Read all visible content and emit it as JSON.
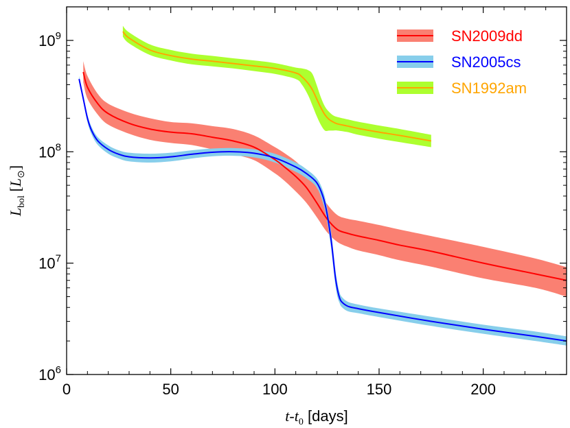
{
  "chart_data": {
    "type": "line",
    "xlabel": {
      "t": "t",
      "dash": "-",
      "t0": "t",
      "sub": "0",
      "units": " [days]"
    },
    "ylabel": {
      "L": "L",
      "sub": "bol",
      "unit_open": " [",
      "unit_L": "L",
      "unit_close": "]"
    },
    "xlim": [
      0,
      240
    ],
    "ylim": [
      1000000,
      2000000000
    ],
    "yscale": "log",
    "xticks": [
      0,
      50,
      100,
      150,
      200
    ],
    "yticks": [
      {
        "value": 1000000,
        "base": "10",
        "exp": "6"
      },
      {
        "value": 10000000,
        "base": "10",
        "exp": "7"
      },
      {
        "value": 100000000,
        "base": "10",
        "exp": "8"
      },
      {
        "value": 1000000000,
        "base": "10",
        "exp": "9"
      }
    ],
    "grid": false,
    "legend_position": "top-right",
    "series": [
      {
        "name": "SN2009dd",
        "line_color": "#ff0000",
        "band_color": "#fa8072",
        "label_color": "#ff0000",
        "x": [
          8,
          10,
          15,
          20,
          30,
          40,
          50,
          60,
          70,
          80,
          90,
          100,
          105,
          110,
          115,
          120,
          125,
          130,
          135,
          140,
          150,
          160,
          175,
          200,
          225,
          240
        ],
        "y": [
          520000000,
          380000000,
          270000000,
          220000000,
          180000000,
          160000000,
          150000000,
          145000000,
          135000000,
          125000000,
          110000000,
          85000000,
          72000000,
          60000000,
          48000000,
          35000000,
          25000000,
          20000000,
          18500000,
          17500000,
          16000000,
          14500000,
          12800000,
          10000000,
          8000000,
          7000000
        ],
        "upper": [
          650000000,
          480000000,
          330000000,
          270000000,
          225000000,
          200000000,
          185000000,
          180000000,
          170000000,
          160000000,
          140000000,
          110000000,
          96000000,
          82000000,
          66000000,
          48000000,
          34000000,
          27000000,
          25000000,
          24000000,
          22000000,
          20000000,
          17500000,
          14000000,
          11000000,
          9200000
        ],
        "lower": [
          420000000,
          300000000,
          215000000,
          175000000,
          145000000,
          128000000,
          120000000,
          115000000,
          105000000,
          95000000,
          84000000,
          64000000,
          54000000,
          44000000,
          35000000,
          26000000,
          19000000,
          15500000,
          14000000,
          13000000,
          11800000,
          10600000,
          9300000,
          7300000,
          6000000,
          5000000
        ]
      },
      {
        "name": "SN2005cs",
        "line_color": "#0000ff",
        "band_color": "#87ceeb",
        "label_color": "#0000ff",
        "x": [
          6,
          8,
          10,
          12,
          15,
          20,
          25,
          30,
          40,
          50,
          60,
          70,
          80,
          90,
          100,
          110,
          115,
          120,
          123,
          125,
          127,
          128,
          129,
          130,
          131,
          132,
          135,
          140,
          150,
          175,
          200,
          225,
          240
        ],
        "y": [
          450000000,
          300000000,
          200000000,
          155000000,
          125000000,
          105000000,
          95000000,
          90000000,
          88000000,
          90000000,
          95000000,
          99000000,
          100000000,
          97000000,
          88000000,
          73000000,
          64000000,
          53000000,
          40000000,
          28000000,
          16000000,
          11000000,
          7500000,
          5800000,
          4900000,
          4500000,
          4100000,
          3900000,
          3600000,
          3000000,
          2550000,
          2200000,
          2000000
        ],
        "upper": [
          480000000,
          320000000,
          215000000,
          167000000,
          135000000,
          114000000,
          103000000,
          98000000,
          96000000,
          98000000,
          103000000,
          107000000,
          108000000,
          105000000,
          96000000,
          80000000,
          70000000,
          58000000,
          45000000,
          32000000,
          19000000,
          13000000,
          8800000,
          6600000,
          5500000,
          5000000,
          4500000,
          4250000,
          3920000,
          3300000,
          2800000,
          2430000,
          2200000
        ],
        "lower": [
          420000000,
          280000000,
          185000000,
          143000000,
          115000000,
          96000000,
          87000000,
          82000000,
          80000000,
          82000000,
          87000000,
          91000000,
          92000000,
          89000000,
          80000000,
          66000000,
          58000000,
          48000000,
          35000000,
          24000000,
          13500000,
          9200000,
          6400000,
          5000000,
          4400000,
          4050000,
          3700000,
          3550000,
          3280000,
          2730000,
          2320000,
          2000000,
          1820000
        ]
      },
      {
        "name": "SN1992am",
        "line_color": "#ffa500",
        "band_color": "#adff2f",
        "label_color": "#ffa500",
        "x": [
          27,
          30,
          40,
          50,
          60,
          70,
          80,
          90,
          100,
          110,
          113,
          116,
          118,
          120,
          122,
          124,
          126,
          128,
          130,
          135,
          140,
          150,
          160,
          175
        ],
        "y": [
          1200000000,
          1050000000,
          820000000,
          730000000,
          680000000,
          650000000,
          620000000,
          590000000,
          560000000,
          510000000,
          470000000,
          410000000,
          360000000,
          300000000,
          250000000,
          215000000,
          195000000,
          185000000,
          178000000,
          170000000,
          162000000,
          150000000,
          140000000,
          125000000
        ],
        "upper": [
          1350000000,
          1180000000,
          920000000,
          820000000,
          760000000,
          725000000,
          690000000,
          660000000,
          625000000,
          570000000,
          560000000,
          540000000,
          500000000,
          400000000,
          310000000,
          255000000,
          228000000,
          212000000,
          205000000,
          195000000,
          186000000,
          172000000,
          160000000,
          142000000
        ],
        "lower": [
          1080000000,
          940000000,
          740000000,
          660000000,
          610000000,
          585000000,
          560000000,
          530000000,
          500000000,
          450000000,
          400000000,
          320000000,
          260000000,
          210000000,
          175000000,
          155000000,
          155000000,
          155000000,
          155000000,
          150000000,
          142000000,
          131000000,
          122000000,
          110000000
        ]
      }
    ]
  }
}
